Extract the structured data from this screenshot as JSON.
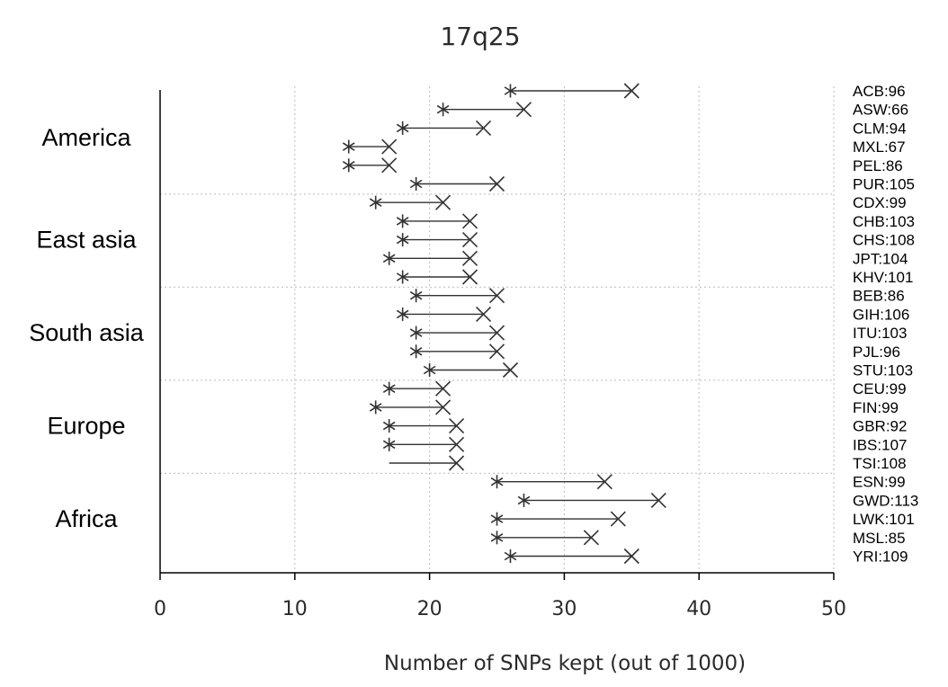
{
  "chart_data": {
    "type": "dumbbell",
    "title": "17q25",
    "xlabel": "Number of SNPs kept (out of 1000)",
    "xlim": [
      0,
      50
    ],
    "xticks": [
      "0",
      "10",
      "20",
      "30",
      "40",
      "50"
    ],
    "grid": "vertical dotted",
    "markers": {
      "start": "asterisk",
      "end": "x"
    },
    "groups": [
      {
        "name": "America",
        "populations": [
          "ACB:96",
          "ASW:66",
          "CLM:94",
          "MXL:67",
          "PEL:86",
          "PUR:105"
        ]
      },
      {
        "name": "East asia",
        "populations": [
          "CDX:99",
          "CHB:103",
          "CHS:108",
          "JPT:104",
          "KHV:101"
        ]
      },
      {
        "name": "South asia",
        "populations": [
          "BEB:86",
          "GIH:106",
          "ITU:103",
          "PJL:96",
          "STU:103"
        ]
      },
      {
        "name": "Europe",
        "populations": [
          "CEU:99",
          "FIN:99",
          "GBR:92",
          "IBS:107",
          "TSI:108"
        ]
      },
      {
        "name": "Africa",
        "populations": [
          "ESN:99",
          "GWD:113",
          "LWK:101",
          "MSL:85",
          "YRI:109"
        ]
      }
    ],
    "rows": [
      {
        "label": "ACB:96",
        "start": 26,
        "end": 35
      },
      {
        "label": "ASW:66",
        "start": 21,
        "end": 27
      },
      {
        "label": "CLM:94",
        "start": 18,
        "end": 24
      },
      {
        "label": "MXL:67",
        "start": 14,
        "end": 17
      },
      {
        "label": "PEL:86",
        "start": 14,
        "end": 17
      },
      {
        "label": "PUR:105",
        "start": 19,
        "end": 25
      },
      {
        "label": "CDX:99",
        "start": 16,
        "end": 21
      },
      {
        "label": "CHB:103",
        "start": 18,
        "end": 23
      },
      {
        "label": "CHS:108",
        "start": 18,
        "end": 23
      },
      {
        "label": "JPT:104",
        "start": 17,
        "end": 23
      },
      {
        "label": "KHV:101",
        "start": 18,
        "end": 23
      },
      {
        "label": "BEB:86",
        "start": 19,
        "end": 25
      },
      {
        "label": "GIH:106",
        "start": 18,
        "end": 24
      },
      {
        "label": "ITU:103",
        "start": 19,
        "end": 25
      },
      {
        "label": "PJL:96",
        "start": 19,
        "end": 25
      },
      {
        "label": "STU:103",
        "start": 20,
        "end": 26
      },
      {
        "label": "CEU:99",
        "start": 17,
        "end": 21
      },
      {
        "label": "FIN:99",
        "start": 16,
        "end": 21
      },
      {
        "label": "GBR:92",
        "start": 17,
        "end": 22
      },
      {
        "label": "IBS:107",
        "start": 17,
        "end": 22
      },
      {
        "label": "TSI:108",
        "start": 17,
        "end": 22,
        "start_marker": false
      },
      {
        "label": "ESN:99",
        "start": 25,
        "end": 33
      },
      {
        "label": "GWD:113",
        "start": 27,
        "end": 37
      },
      {
        "label": "LWK:101",
        "start": 25,
        "end": 34
      },
      {
        "label": "MSL:85",
        "start": 25,
        "end": 32
      },
      {
        "label": "YRI:109",
        "start": 26,
        "end": 35
      }
    ]
  }
}
